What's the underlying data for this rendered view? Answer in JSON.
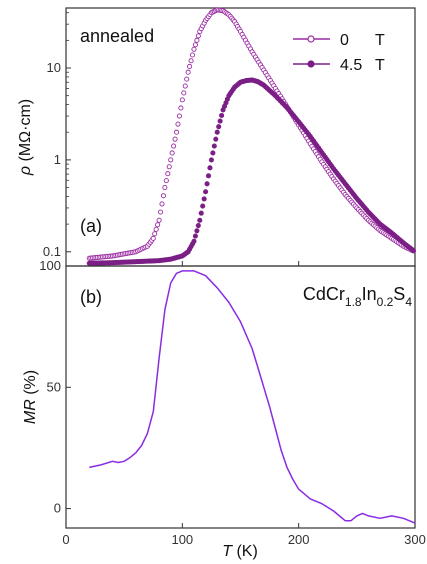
{
  "chart_data": [
    {
      "type": "scatter",
      "panel_label": "(a)",
      "annotation": "annealed",
      "ylabel_symbol": "ρ",
      "ylabel_unit": "(MΩ·cm)",
      "yscale": "log",
      "ylim": [
        0.07,
        45
      ],
      "xlim": [
        0,
        300
      ],
      "yticks": [
        "0.1",
        "1",
        "10"
      ],
      "legend_position": "top-right",
      "series": [
        {
          "name": "0",
          "unit": "T",
          "marker": "open-circle",
          "color": "#9b2ca3",
          "x": [
            20,
            40,
            60,
            70,
            75,
            80,
            85,
            90,
            95,
            100,
            105,
            110,
            115,
            120,
            125,
            130,
            135,
            140,
            145,
            150,
            160,
            170,
            180,
            190,
            200,
            210,
            220,
            230,
            240,
            250,
            260,
            270,
            280,
            290,
            300
          ],
          "y": [
            0.085,
            0.09,
            0.1,
            0.115,
            0.14,
            0.22,
            0.5,
            1.0,
            2.0,
            4.5,
            9.0,
            16,
            25,
            33,
            40,
            43,
            42,
            38,
            32,
            25,
            15,
            9.5,
            6.0,
            3.8,
            2.4,
            1.5,
            0.95,
            0.62,
            0.42,
            0.3,
            0.22,
            0.17,
            0.14,
            0.115,
            0.1
          ]
        },
        {
          "name": "4.5",
          "unit": "T",
          "marker": "filled-circle",
          "color": "#7b1f86",
          "x": [
            20,
            40,
            60,
            80,
            90,
            100,
            105,
            110,
            115,
            120,
            125,
            130,
            135,
            140,
            145,
            150,
            155,
            160,
            165,
            170,
            180,
            190,
            200,
            210,
            220,
            230,
            240,
            250,
            260,
            270,
            280,
            290,
            300
          ],
          "y": [
            0.075,
            0.076,
            0.078,
            0.08,
            0.083,
            0.09,
            0.1,
            0.13,
            0.22,
            0.45,
            1.0,
            2.0,
            3.5,
            5.0,
            6.2,
            7.0,
            7.3,
            7.4,
            7.1,
            6.5,
            5.0,
            3.7,
            2.6,
            1.8,
            1.2,
            0.8,
            0.55,
            0.38,
            0.27,
            0.2,
            0.16,
            0.125,
            0.1
          ]
        }
      ]
    },
    {
      "type": "line",
      "panel_label": "(b)",
      "compound": {
        "base": "CdCr",
        "sub1": "1.8",
        "mid": "In",
        "sub2": "0.2",
        "tail": "S",
        "sub3": "4"
      },
      "ylabel_symbol": "MR",
      "ylabel_unit": "(%)",
      "xlabel_symbol": "T",
      "xlabel_unit": "(K)",
      "xlim": [
        0,
        300
      ],
      "ylim": [
        -8,
        100
      ],
      "xticks": [
        "0",
        "100",
        "200",
        "300"
      ],
      "yticks": [
        "0",
        "50",
        "100"
      ],
      "color": "#8a2be2",
      "series": [
        {
          "x": [
            20,
            30,
            40,
            45,
            50,
            55,
            60,
            65,
            70,
            75,
            80,
            85,
            90,
            95,
            100,
            110,
            120,
            130,
            140,
            150,
            160,
            165,
            170,
            175,
            180,
            185,
            190,
            195,
            200,
            210,
            220,
            230,
            240,
            245,
            250,
            255,
            260,
            270,
            280,
            290,
            300
          ],
          "y": [
            17,
            18,
            19.5,
            19,
            19.5,
            21,
            23,
            26,
            31,
            40,
            62,
            82,
            93,
            97,
            98,
            98,
            96,
            91,
            85,
            77,
            66,
            58,
            50,
            42,
            33,
            24,
            17,
            12,
            8,
            4,
            2,
            -1,
            -5,
            -5,
            -3,
            -2,
            -3,
            -4,
            -3,
            -4,
            -6
          ]
        }
      ]
    }
  ]
}
